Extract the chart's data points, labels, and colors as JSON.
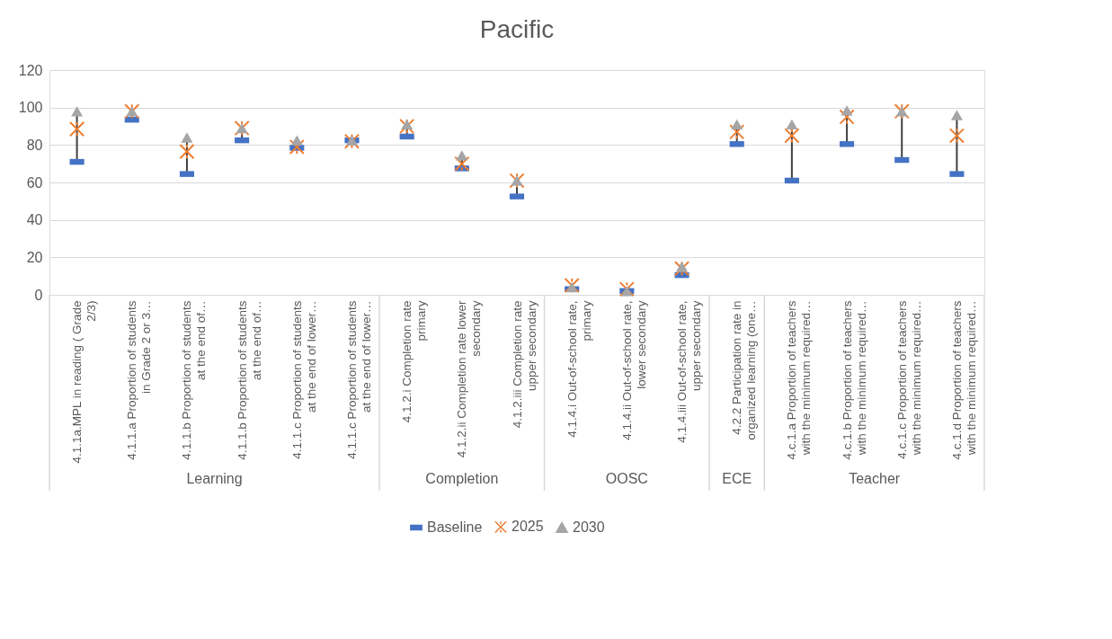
{
  "chart_data": {
    "type": "scatter",
    "title": "Pacific",
    "categories": [
      "4.1.1a.MPL in reading ( Grade 2/3)",
      "4.1.1.a Proportion of students in Grade 2 or 3…",
      "4.1.1.b Proportion of students at the end of…",
      "4.1.1.b Proportion of students at the end of…",
      "4.1.1.c Proportion of students at the end of lower…",
      "4.1.1.c Proportion of students at the end of lower…",
      "4.1.2.i Completion rate primary",
      "4.1.2.ii Completion rate lower secondary",
      "4.1.2.iii Completion rate upper secondary",
      "4.1.4.i Out-of-school rate, primary",
      "4.1.4.ii Out-of-school rate, lower secondary",
      "4.1.4.iii Out-of-school rate, upper secondary",
      "4.2.2 Participation rate in organized learning (one…",
      "4.c.1.a Proportion of teachers with the minimum required…",
      "4.c.1.b Proportion of teachers with the minimum required…",
      "4.c.1.c Proportion of teachers with the minimum required…",
      "4.c.1.d Proportion of teachers with the minimum required…"
    ],
    "annotations": [
      "Learning",
      "Completion",
      "OOSC",
      "ECE",
      "Teacher"
    ],
    "series": [
      {
        "name": "Baseline",
        "color": "#4472c4",
        "marker": "square",
        "values": [
          71,
          93.5,
          64.5,
          82.5,
          78.5,
          82.5,
          84.5,
          67.5,
          52.5,
          3,
          2,
          10.5,
          80.5,
          61,
          80.5,
          72,
          64.5
        ]
      },
      {
        "name": "2025",
        "color": "#ed7d31",
        "marker": "cross",
        "values": [
          88.5,
          98,
          76.5,
          89,
          79,
          82,
          90,
          70,
          61,
          5,
          3,
          14,
          87,
          85,
          95,
          98,
          85
        ]
      },
      {
        "name": "2030",
        "color": "#a5a5a5",
        "marker": "triangle",
        "values": [
          98,
          98,
          84,
          89,
          82.5,
          82.5,
          91,
          74.5,
          61,
          4,
          2,
          15,
          91,
          91,
          98.5,
          98,
          96
        ]
      }
    ],
    "ylim": [
      0,
      120
    ],
    "yticks": [
      0,
      20,
      40,
      60,
      80,
      100,
      120
    ],
    "grid": "y",
    "legend": "bottom"
  }
}
